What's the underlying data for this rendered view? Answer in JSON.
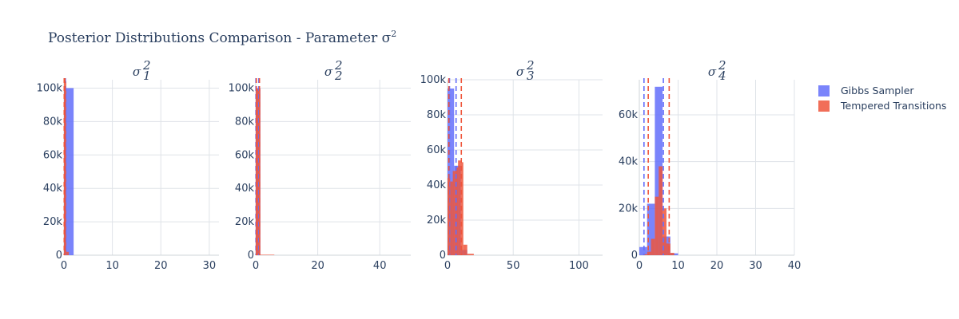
{
  "figure": {
    "title_prefix": "Posterior Distributions Comparison - Parameter ",
    "title_symbol": "σ",
    "title_sup": "2"
  },
  "legend": [
    {
      "name": "Gibbs Sampler",
      "color": "#636efa"
    },
    {
      "name": "Tempered Transitions",
      "color": "#ef553b"
    }
  ],
  "chart_data": [
    {
      "type": "histogram",
      "subplot_title": {
        "symbol": "σ",
        "sup": "2",
        "sub": "1"
      },
      "xlim": [
        0,
        32
      ],
      "ylim": [
        0,
        105000
      ],
      "xticks": [
        0,
        10,
        20,
        30
      ],
      "xtick_labels": [
        "0",
        "10",
        "20",
        "30"
      ],
      "yticks": [
        0,
        20000,
        40000,
        60000,
        80000,
        100000
      ],
      "ytick_labels": [
        "0",
        "20k",
        "40k",
        "60k",
        "80k",
        "100k"
      ],
      "series": [
        {
          "name": "Gibbs Sampler",
          "color": "#636efa",
          "bins": [
            [
              0,
              2,
              100000
            ]
          ],
          "lines": [
            0.05,
            0.3
          ]
        },
        {
          "name": "Tempered Transitions",
          "color": "#ef553b",
          "bins": [
            [
              0,
              0.5,
              104000
            ],
            [
              0.5,
              1.0,
              2000
            ]
          ],
          "lines": [
            0.05,
            0.2
          ]
        }
      ]
    },
    {
      "type": "histogram",
      "subplot_title": {
        "symbol": "σ",
        "sup": "2",
        "sub": "2"
      },
      "xlim": [
        0,
        50
      ],
      "ylim": [
        0,
        105000
      ],
      "xticks": [
        0,
        20,
        40
      ],
      "xtick_labels": [
        "0",
        "20",
        "40"
      ],
      "yticks": [
        0,
        20000,
        40000,
        60000,
        80000,
        100000
      ],
      "ytick_labels": [
        "0",
        "20k",
        "40k",
        "60k",
        "80k",
        "100k"
      ],
      "series": [
        {
          "name": "Gibbs Sampler",
          "color": "#636efa",
          "bins": [
            [
              0,
              1.5,
              100000
            ]
          ],
          "lines": [
            0.05,
            1.0
          ]
        },
        {
          "name": "Tempered Transitions",
          "color": "#ef553b",
          "bins": [
            [
              0,
              1.5,
              99500
            ],
            [
              1.5,
              6,
              300
            ]
          ],
          "lines": [
            0.2,
            1.2
          ]
        }
      ]
    },
    {
      "type": "histogram",
      "subplot_title": {
        "symbol": "σ",
        "sup": "2",
        "sub": "3"
      },
      "xlim": [
        0,
        118
      ],
      "ylim": [
        0,
        100000
      ],
      "xticks": [
        0,
        50,
        100
      ],
      "xtick_labels": [
        "0",
        "50",
        "100"
      ],
      "yticks": [
        0,
        20000,
        40000,
        60000,
        80000,
        100000
      ],
      "ytick_labels": [
        "0",
        "20k",
        "40k",
        "60k",
        "80k",
        "100k"
      ],
      "series": [
        {
          "name": "Gibbs Sampler",
          "color": "#636efa",
          "bins": [
            [
              0,
              5,
              95000
            ],
            [
              5,
              10,
              51000
            ],
            [
              10,
              15,
              3000
            ]
          ],
          "lines": [
            1.5,
            6.5
          ]
        },
        {
          "name": "Tempered Transitions",
          "color": "#ef553b",
          "bins": [
            [
              0,
              2,
              44000
            ],
            [
              2,
              4,
              42000
            ],
            [
              4,
              6,
              48000
            ],
            [
              6,
              8,
              50000
            ],
            [
              8,
              10,
              54000
            ],
            [
              10,
              12,
              53000
            ],
            [
              12,
              15,
              6000
            ],
            [
              15,
              20,
              800
            ]
          ],
          "lines": [
            1.0,
            10.5
          ]
        }
      ]
    },
    {
      "type": "histogram",
      "subplot_title": {
        "symbol": "σ",
        "sup": "2",
        "sub": "4"
      },
      "xlim": [
        0,
        40
      ],
      "ylim": [
        0,
        75000
      ],
      "xticks": [
        0,
        10,
        20,
        30,
        40
      ],
      "xtick_labels": [
        "0",
        "10",
        "20",
        "30",
        "40"
      ],
      "yticks": [
        0,
        20000,
        40000,
        60000
      ],
      "ytick_labels": [
        "0",
        "20k",
        "40k",
        "60k"
      ],
      "series": [
        {
          "name": "Gibbs Sampler",
          "color": "#636efa",
          "bins": [
            [
              0,
              2,
              3500
            ],
            [
              2,
              4,
              22000
            ],
            [
              4,
              6,
              72000
            ],
            [
              6,
              8,
              8000
            ],
            [
              8,
              10,
              800
            ]
          ],
          "lines": [
            1.2,
            6.2
          ]
        },
        {
          "name": "Tempered Transitions",
          "color": "#ef553b",
          "bins": [
            [
              1,
              2,
              400
            ],
            [
              2,
              3,
              1500
            ],
            [
              3,
              4,
              7000
            ],
            [
              4,
              5,
              25000
            ],
            [
              5,
              6,
              38000
            ],
            [
              6,
              7,
              20000
            ],
            [
              7,
              8,
              5000
            ],
            [
              8,
              9,
              1000
            ]
          ],
          "lines": [
            2.3,
            7.7
          ]
        }
      ]
    }
  ]
}
